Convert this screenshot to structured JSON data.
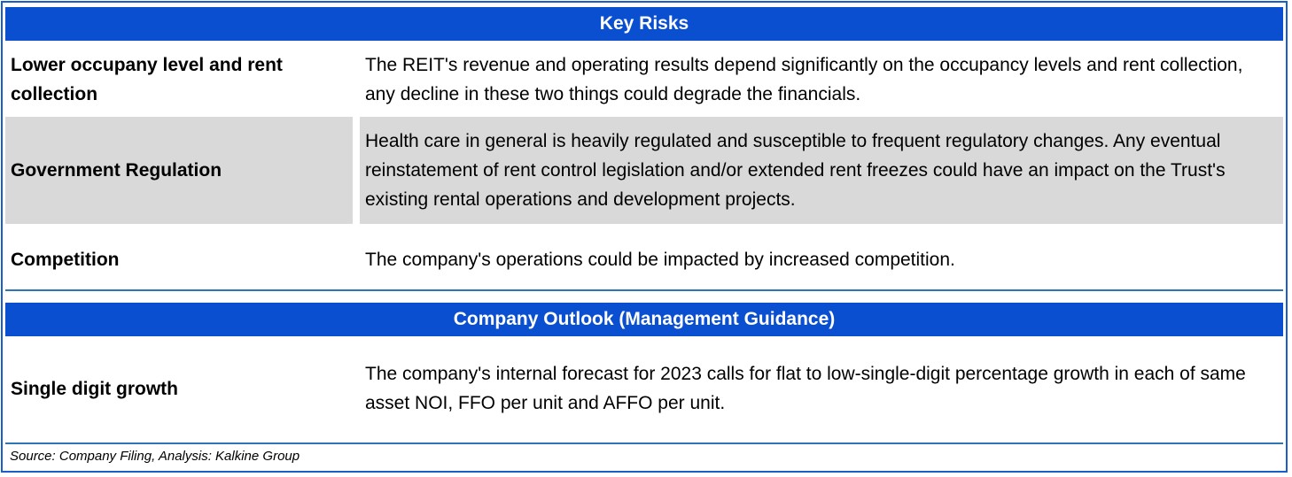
{
  "key_risks": {
    "title": "Key Risks",
    "rows": [
      {
        "label": "Lower occupany level and rent collection",
        "description": "The REIT's revenue and operating results depend significantly on the occupancy levels and rent collection, any decline in these two things could degrade the financials."
      },
      {
        "label": "Government Regulation",
        "description": "Health care in general is heavily regulated and susceptible to frequent regulatory changes. Any eventual reinstatement of rent control legislation and/or extended rent freezes could have an impact on the Trust's existing rental operations and development projects."
      },
      {
        "label": "Competition",
        "description": "The company's operations could be impacted by increased competition."
      }
    ]
  },
  "outlook": {
    "title": "Company Outlook (Management Guidance)",
    "rows": [
      {
        "label": "Single digit growth",
        "description": "The company's internal forecast for 2023 calls for flat to low-single-digit percentage growth in each of same asset NOI, FFO per unit and AFFO per unit."
      }
    ]
  },
  "source": "Source: Company Filing, Analysis: Kalkine Group",
  "colors": {
    "header_bg": "#0b4fd1",
    "row_shade": "#d9d9d9",
    "rule": "#2e75b6"
  }
}
